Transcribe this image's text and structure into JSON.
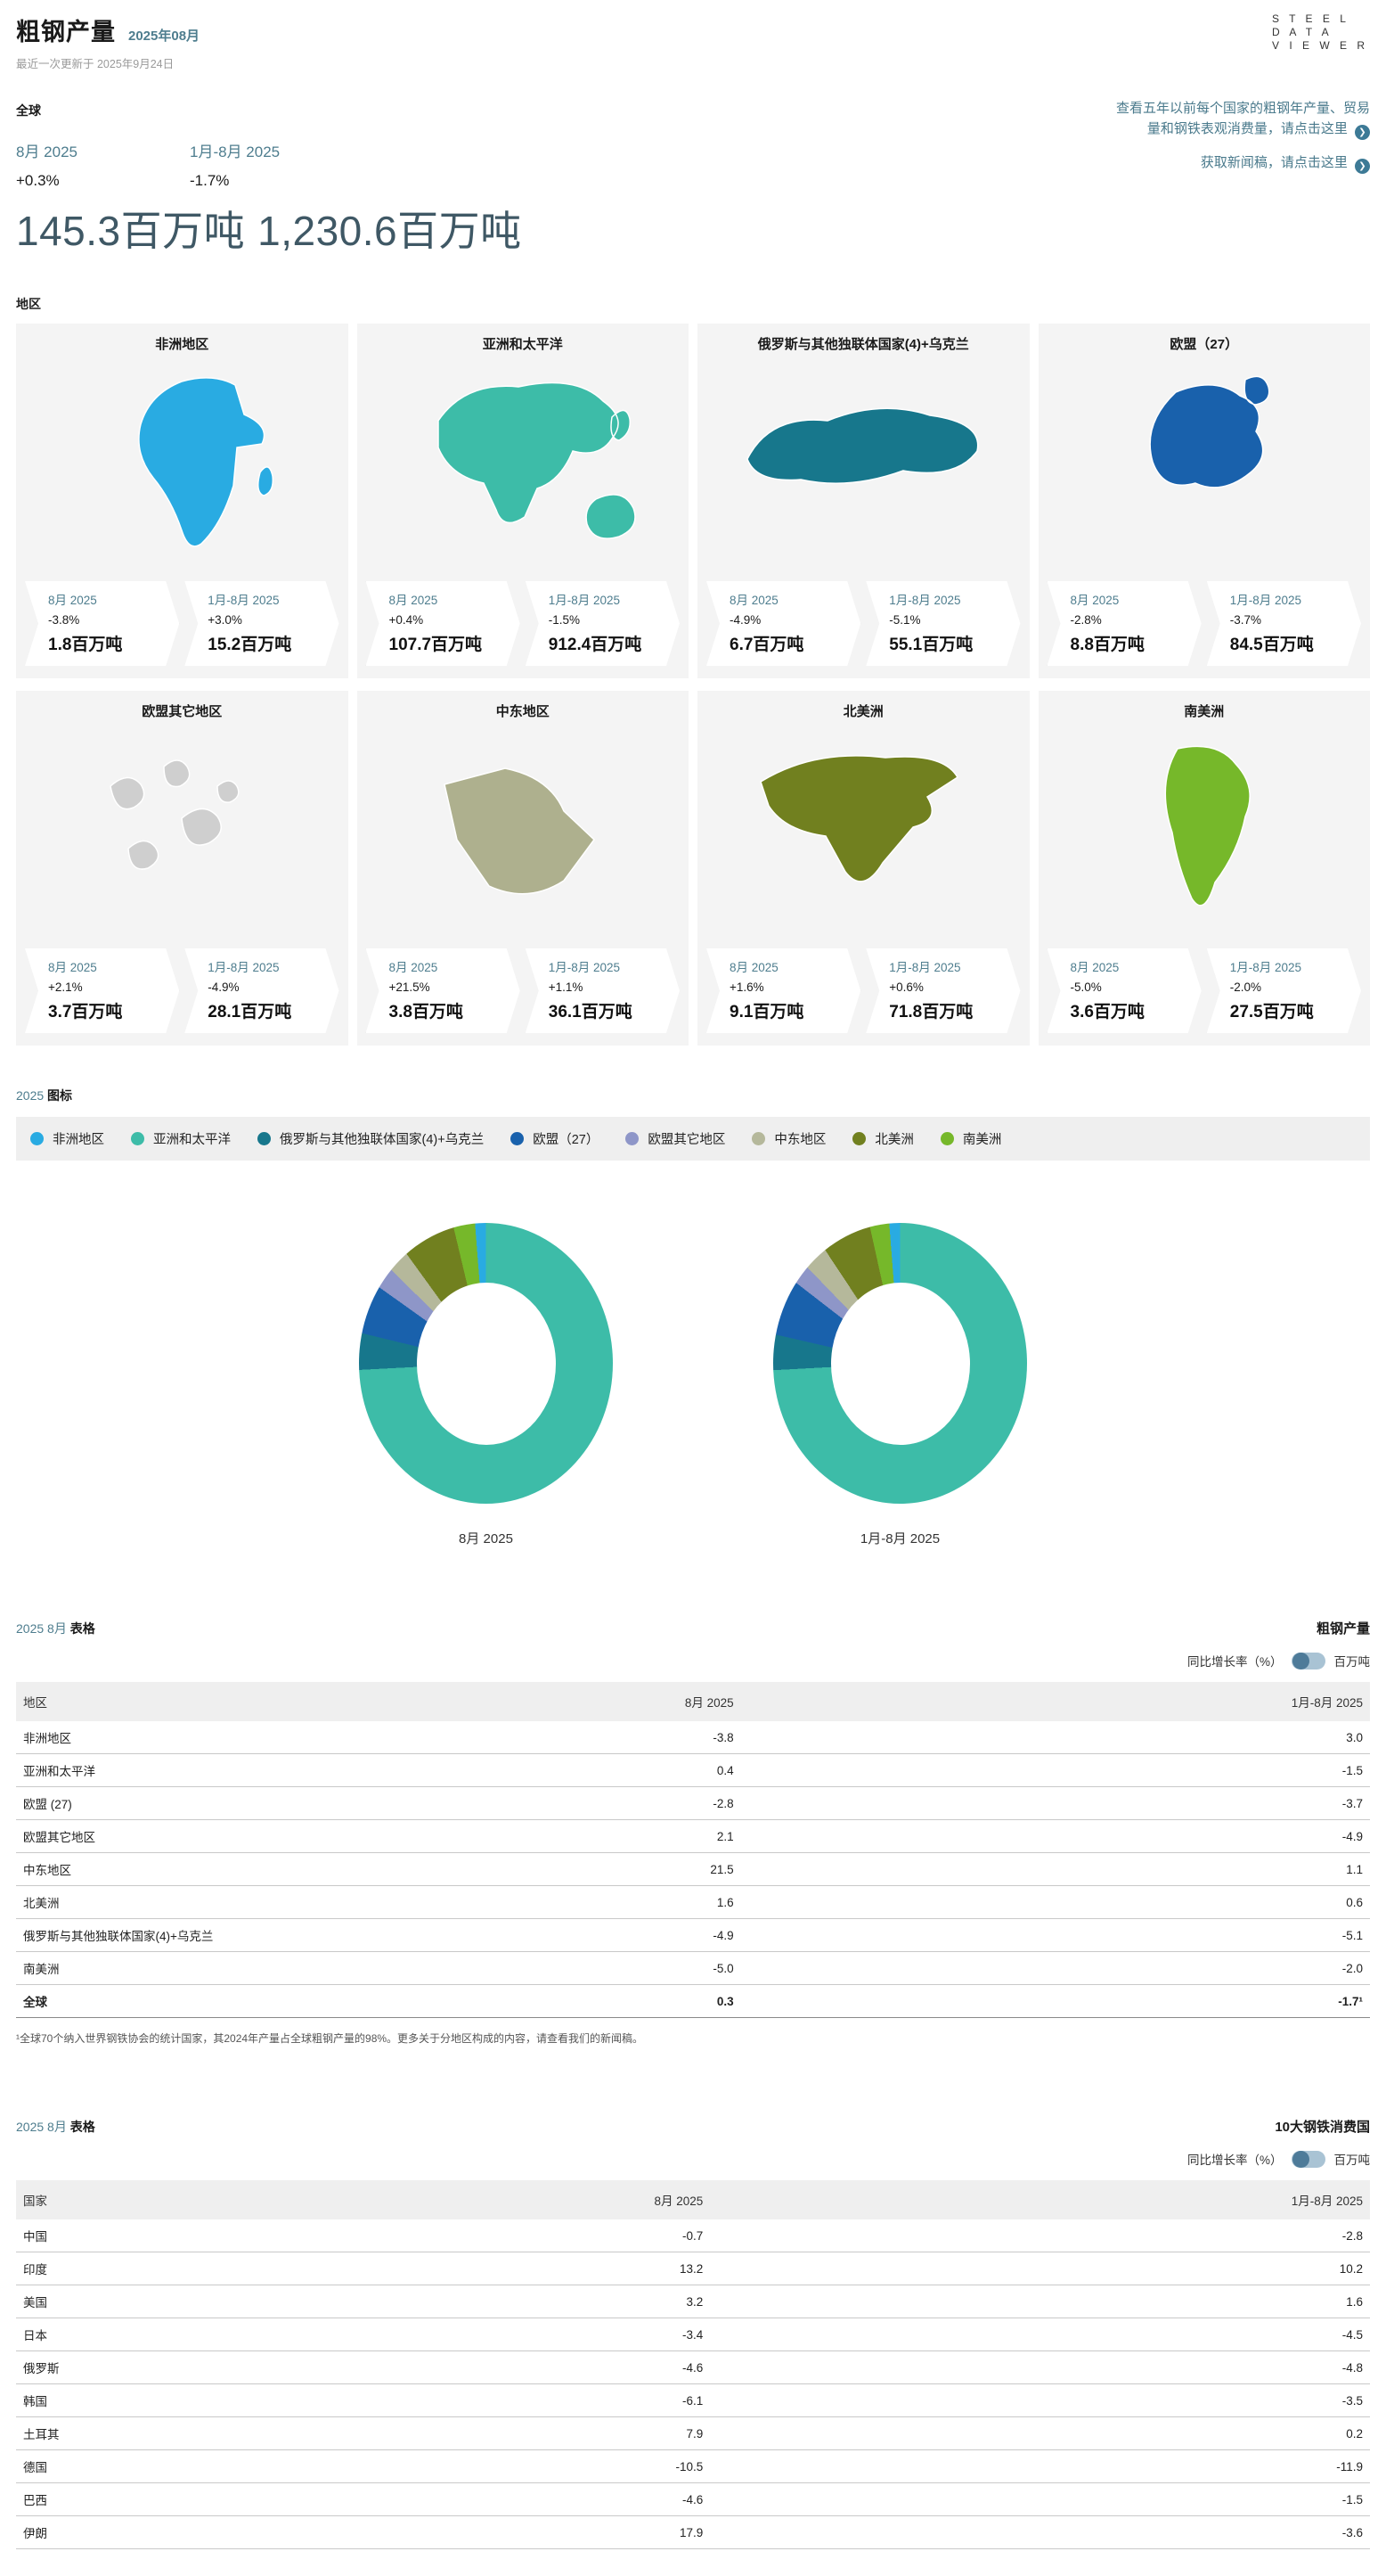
{
  "header": {
    "title": "粗钢产量",
    "period": "2025年08月",
    "updated": "最近一次更新于 2025年9月24日",
    "logo_line1": "S T E E L",
    "logo_line2": "D A T A",
    "logo_line3": "V I E W E R"
  },
  "links": {
    "link1": "查看五年以前每个国家的粗钢年产量、贸易",
    "link1b": "量和钢铁表观消费量，请点击这里",
    "link2": "获取新闻稿，请点击这里",
    "arrow_glyph": "❯"
  },
  "global": {
    "label": "全球",
    "month_label": "8月 2025",
    "month_pct": "+0.3%",
    "month_value": "145.3百万吨",
    "ytd_label": "1月-8月 2025",
    "ytd_pct": "-1.7%",
    "ytd_value": "1,230.6百万吨"
  },
  "regions_label": "地区",
  "regions": [
    {
      "name": "非洲地区",
      "map_color": "#29ABE2",
      "m_label": "8月 2025",
      "m_pct": "-3.8%",
      "m_val": "1.8百万吨",
      "y_label": "1月-8月 2025",
      "y_pct": "+3.0%",
      "y_val": "15.2百万吨"
    },
    {
      "name": "亚洲和太平洋",
      "map_color": "#3DBCA8",
      "m_label": "8月 2025",
      "m_pct": "+0.4%",
      "m_val": "107.7百万吨",
      "y_label": "1月-8月 2025",
      "y_pct": "-1.5%",
      "y_val": "912.4百万吨"
    },
    {
      "name": "俄罗斯与其他独联体国家(4)+乌克兰",
      "map_color": "#17778C",
      "m_label": "8月 2025",
      "m_pct": "-4.9%",
      "m_val": "6.7百万吨",
      "y_label": "1月-8月 2025",
      "y_pct": "-5.1%",
      "y_val": "55.1百万吨"
    },
    {
      "name": "欧盟（27）",
      "map_color": "#1961AC",
      "m_label": "8月 2025",
      "m_pct": "-2.8%",
      "m_val": "8.8百万吨",
      "y_label": "1月-8月 2025",
      "y_pct": "-3.7%",
      "y_val": "84.5百万吨"
    },
    {
      "name": "欧盟其它地区",
      "map_color": "#CFCFCF",
      "m_label": "8月 2025",
      "m_pct": "+2.1%",
      "m_val": "3.7百万吨",
      "y_label": "1月-8月 2025",
      "y_pct": "-4.9%",
      "y_val": "28.1百万吨"
    },
    {
      "name": "中东地区",
      "map_color": "#AEB08E",
      "m_label": "8月 2025",
      "m_pct": "+21.5%",
      "m_val": "3.8百万吨",
      "y_label": "1月-8月 2025",
      "y_pct": "+1.1%",
      "y_val": "36.1百万吨"
    },
    {
      "name": "北美洲",
      "map_color": "#71801F",
      "m_label": "8月 2025",
      "m_pct": "+1.6%",
      "m_val": "9.1百万吨",
      "y_label": "1月-8月 2025",
      "y_pct": "+0.6%",
      "y_val": "71.8百万吨"
    },
    {
      "name": "南美洲",
      "map_color": "#76B82A",
      "m_label": "8月 2025",
      "m_pct": "-5.0%",
      "m_val": "3.6百万吨",
      "y_label": "1月-8月 2025",
      "y_pct": "-2.0%",
      "y_val": "27.5百万吨"
    }
  ],
  "legend": {
    "year": "2025",
    "word": "图标",
    "items": [
      {
        "label": "非洲地区",
        "color": "#29ABE2"
      },
      {
        "label": "亚洲和太平洋",
        "color": "#3DBCA8"
      },
      {
        "label": "俄罗斯与其他独联体国家(4)+乌克兰",
        "color": "#17778C"
      },
      {
        "label": "欧盟（27）",
        "color": "#1961AC"
      },
      {
        "label": "欧盟其它地区",
        "color": "#8E96C8"
      },
      {
        "label": "中东地区",
        "color": "#B5B89B"
      },
      {
        "label": "北美洲",
        "color": "#71801F"
      },
      {
        "label": "南美洲",
        "color": "#76B82A"
      }
    ]
  },
  "chart_data": {
    "type": "pie",
    "order": [
      "亚洲和太平洋",
      "俄罗斯与其他独联体国家(4)+乌克兰",
      "欧盟（27）",
      "欧盟其它地区",
      "中东地区",
      "北美洲",
      "南美洲",
      "非洲地区"
    ],
    "colors": [
      "#3DBCA8",
      "#17778C",
      "#1961AC",
      "#8E96C8",
      "#B5B89B",
      "#71801F",
      "#76B82A",
      "#29ABE2"
    ],
    "charts": [
      {
        "label": "8月 2025",
        "values": [
          107.7,
          6.7,
          8.8,
          3.7,
          3.8,
          9.1,
          3.6,
          1.8
        ],
        "total": 145.3
      },
      {
        "label": "1月-8月 2025",
        "values": [
          912.4,
          55.1,
          84.5,
          28.1,
          36.1,
          71.8,
          27.5,
          15.2
        ],
        "total": 1230.6
      }
    ]
  },
  "tables": [
    {
      "period": "2025 8月",
      "kind": "表格",
      "title": "粗钢产量",
      "toggle_left": "同比增长率（%）",
      "toggle_right": "百万吨",
      "columns": [
        "地区",
        "8月 2025",
        "1月-8月 2025"
      ],
      "rows": [
        [
          "非洲地区",
          "-3.8",
          "3.0"
        ],
        [
          "亚洲和太平洋",
          "0.4",
          "-1.5"
        ],
        [
          "欧盟 (27)",
          "-2.8",
          "-3.7"
        ],
        [
          "欧盟其它地区",
          "2.1",
          "-4.9"
        ],
        [
          "中东地区",
          "21.5",
          "1.1"
        ],
        [
          "北美洲",
          "1.6",
          "0.6"
        ],
        [
          "俄罗斯与其他独联体国家(4)+乌克兰",
          "-4.9",
          "-5.1"
        ],
        [
          "南美洲",
          "-5.0",
          "-2.0"
        ]
      ],
      "total_row": [
        "全球",
        "0.3",
        "-1.7¹"
      ],
      "footnote": "¹全球70个纳入世界钢铁协会的统计国家，其2024年产量占全球粗钢产量的98%。更多关于分地区构成的内容，请查看我们的新闻稿。"
    },
    {
      "period": "2025 8月",
      "kind": "表格",
      "title": "10大钢铁消费国",
      "toggle_left": "同比增长率（%）",
      "toggle_right": "百万吨",
      "columns": [
        "国家",
        "8月 2025",
        "1月-8月 2025"
      ],
      "rows": [
        [
          "中国",
          "-0.7",
          "-2.8"
        ],
        [
          "印度",
          "13.2",
          "10.2"
        ],
        [
          "美国",
          "3.2",
          "1.6"
        ],
        [
          "日本",
          "-3.4",
          "-4.5"
        ],
        [
          "俄罗斯",
          "-4.6",
          "-4.8"
        ],
        [
          "韩国",
          "-6.1",
          "-3.5"
        ],
        [
          "土耳其",
          "7.9",
          "0.2"
        ],
        [
          "德国",
          "-10.5",
          "-11.9"
        ],
        [
          "巴西",
          "-4.6",
          "-1.5"
        ],
        [
          "伊朗",
          "17.9",
          "-3.6"
        ]
      ],
      "total_row": null,
      "footnote": null
    }
  ]
}
